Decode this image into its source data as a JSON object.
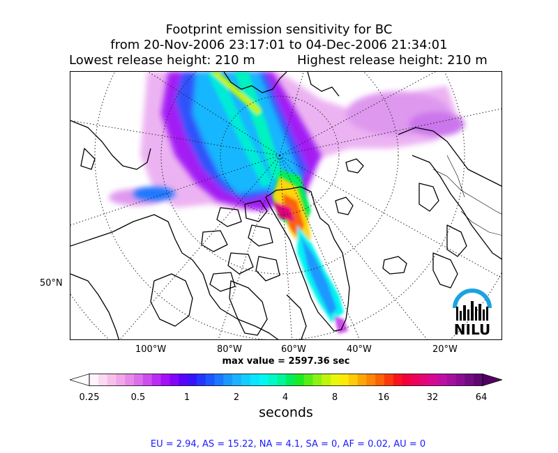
{
  "title": {
    "line1": "Footprint emission sensitivity for BC",
    "line2": "from 20-Nov-2006 23:17:01 to 04-Dec-2006 21:34:01",
    "lowest_release": "Lowest release height: 210 m",
    "highest_release": "Highest release height: 210 m"
  },
  "map": {
    "projection": "polar stereographic",
    "lat_labels": [
      "50°N"
    ],
    "lon_labels": [
      "100°W",
      "80°W",
      "60°W",
      "40°W",
      "20°W"
    ],
    "max_value": "max value = 2597.36 sec",
    "logo_text": "NILU",
    "icons": [
      "nilu-logo-icon"
    ]
  },
  "colorbar": {
    "tick_labels": [
      "0.25",
      "0.5",
      "1",
      "2",
      "4",
      "8",
      "16",
      "32",
      "64"
    ],
    "unit": "seconds",
    "extend": "both",
    "colors": [
      "#fff4fb",
      "#fbd9f2",
      "#f6c0ea",
      "#f1a6e8",
      "#e78be8",
      "#dc6fe9",
      "#ce4ded",
      "#bb2cf2",
      "#a40ff6",
      "#8305f8",
      "#5a04fa",
      "#3712fb",
      "#2237fd",
      "#1b58ff",
      "#1b78ff",
      "#1b98ff",
      "#19b3ff",
      "#12ccff",
      "#0be3ff",
      "#05f5f0",
      "#02f8c8",
      "#00f597",
      "#00ee5a",
      "#1aeb20",
      "#55ee16",
      "#8df213",
      "#bff40e",
      "#e9f70a",
      "#fce907",
      "#fdcb07",
      "#fda607",
      "#fd8507",
      "#fd6207",
      "#fb3a0b",
      "#f9141c",
      "#f3013a",
      "#ec0359",
      "#e2067a",
      "#d40a95",
      "#bf0ea3",
      "#a40f9e",
      "#8a0e92",
      "#720b82",
      "#5c0870"
    ],
    "under_color": "#ffffff",
    "over_color": "#520063"
  },
  "footer": {
    "regional_totals": "EU = 2.94,  AS = 15.22,  NA = 4.1,  SA = 0,  AF = 0.02,  AU = 0"
  }
}
